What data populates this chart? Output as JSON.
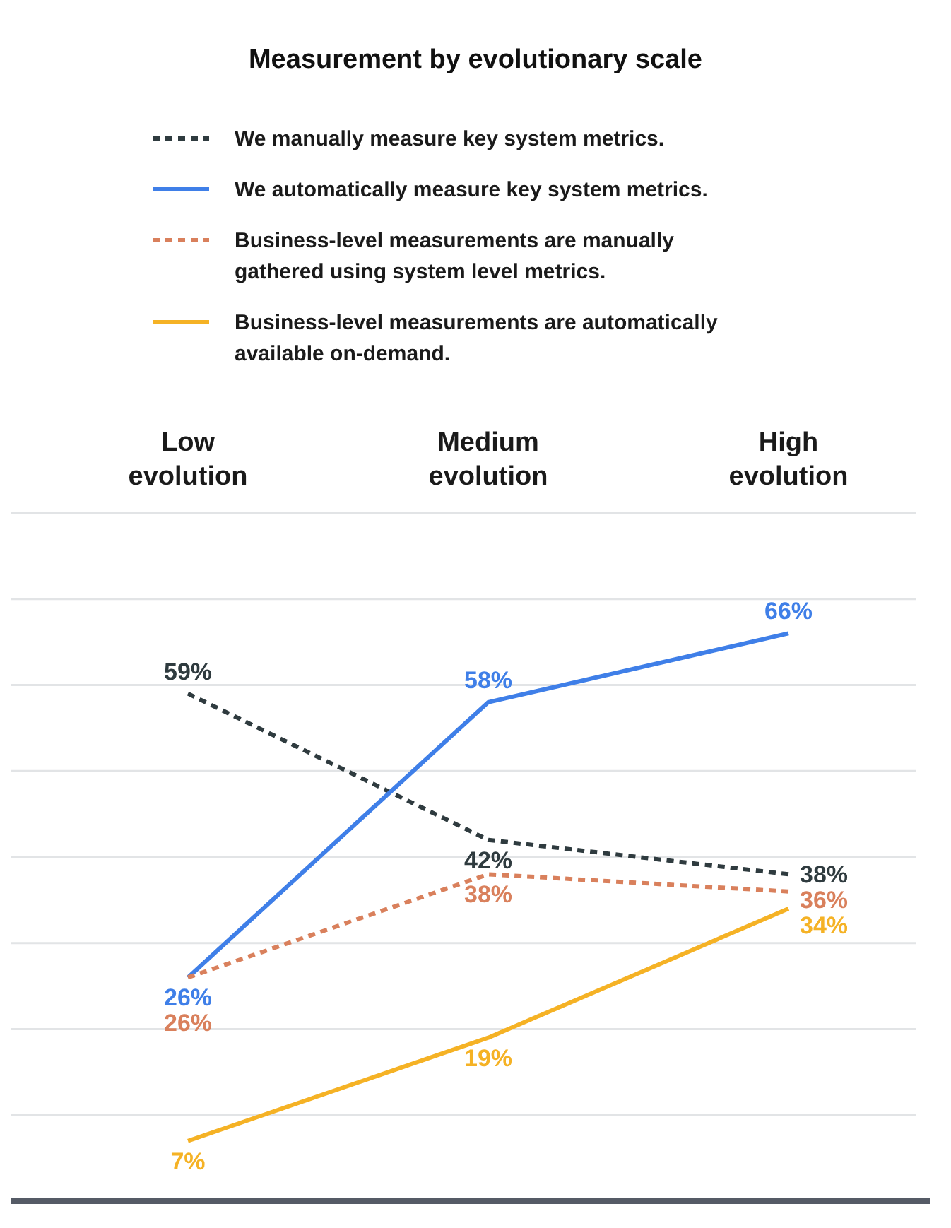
{
  "chart_data": {
    "type": "line",
    "title": "Measurement by evolutionary scale",
    "categories": [
      "Low evolution",
      "Medium evolution",
      "High evolution"
    ],
    "series": [
      {
        "name": "We manually measure key system metrics.",
        "color": "#2f3b3f",
        "line_style": "dashed",
        "values": [
          59,
          42,
          38
        ],
        "value_labels": [
          "59%",
          "42%",
          "38%"
        ]
      },
      {
        "name": "We automatically measure key system metrics.",
        "color": "#3f7fe8",
        "line_style": "solid",
        "values": [
          26,
          58,
          66
        ],
        "value_labels": [
          "26%",
          "58%",
          "66%"
        ]
      },
      {
        "name": "Business-level measurements are manually gathered using system level metrics.",
        "color": "#d9805c",
        "line_style": "dashed",
        "values": [
          26,
          38,
          36
        ],
        "value_labels": [
          "26%",
          "38%",
          "36%"
        ]
      },
      {
        "name": "Business-level measurements are automatically available on-demand.",
        "color": "#f5b225",
        "line_style": "solid",
        "values": [
          7,
          19,
          34
        ],
        "value_labels": [
          "7%",
          "19%",
          "34%"
        ]
      }
    ],
    "ylim": [
      0,
      80
    ],
    "yticks": [
      {
        "value": 0,
        "label": null
      },
      {
        "value": 10,
        "label": null
      },
      {
        "value": 20,
        "label": null
      },
      {
        "value": 30,
        "label": null
      },
      {
        "value": 40,
        "label": null
      },
      {
        "value": 50,
        "label": null
      },
      {
        "value": 60,
        "label": null
      },
      {
        "value": 70,
        "label": null
      },
      {
        "value": 80,
        "label": null
      }
    ],
    "grid": "y",
    "legend": "top",
    "marker": "none"
  }
}
